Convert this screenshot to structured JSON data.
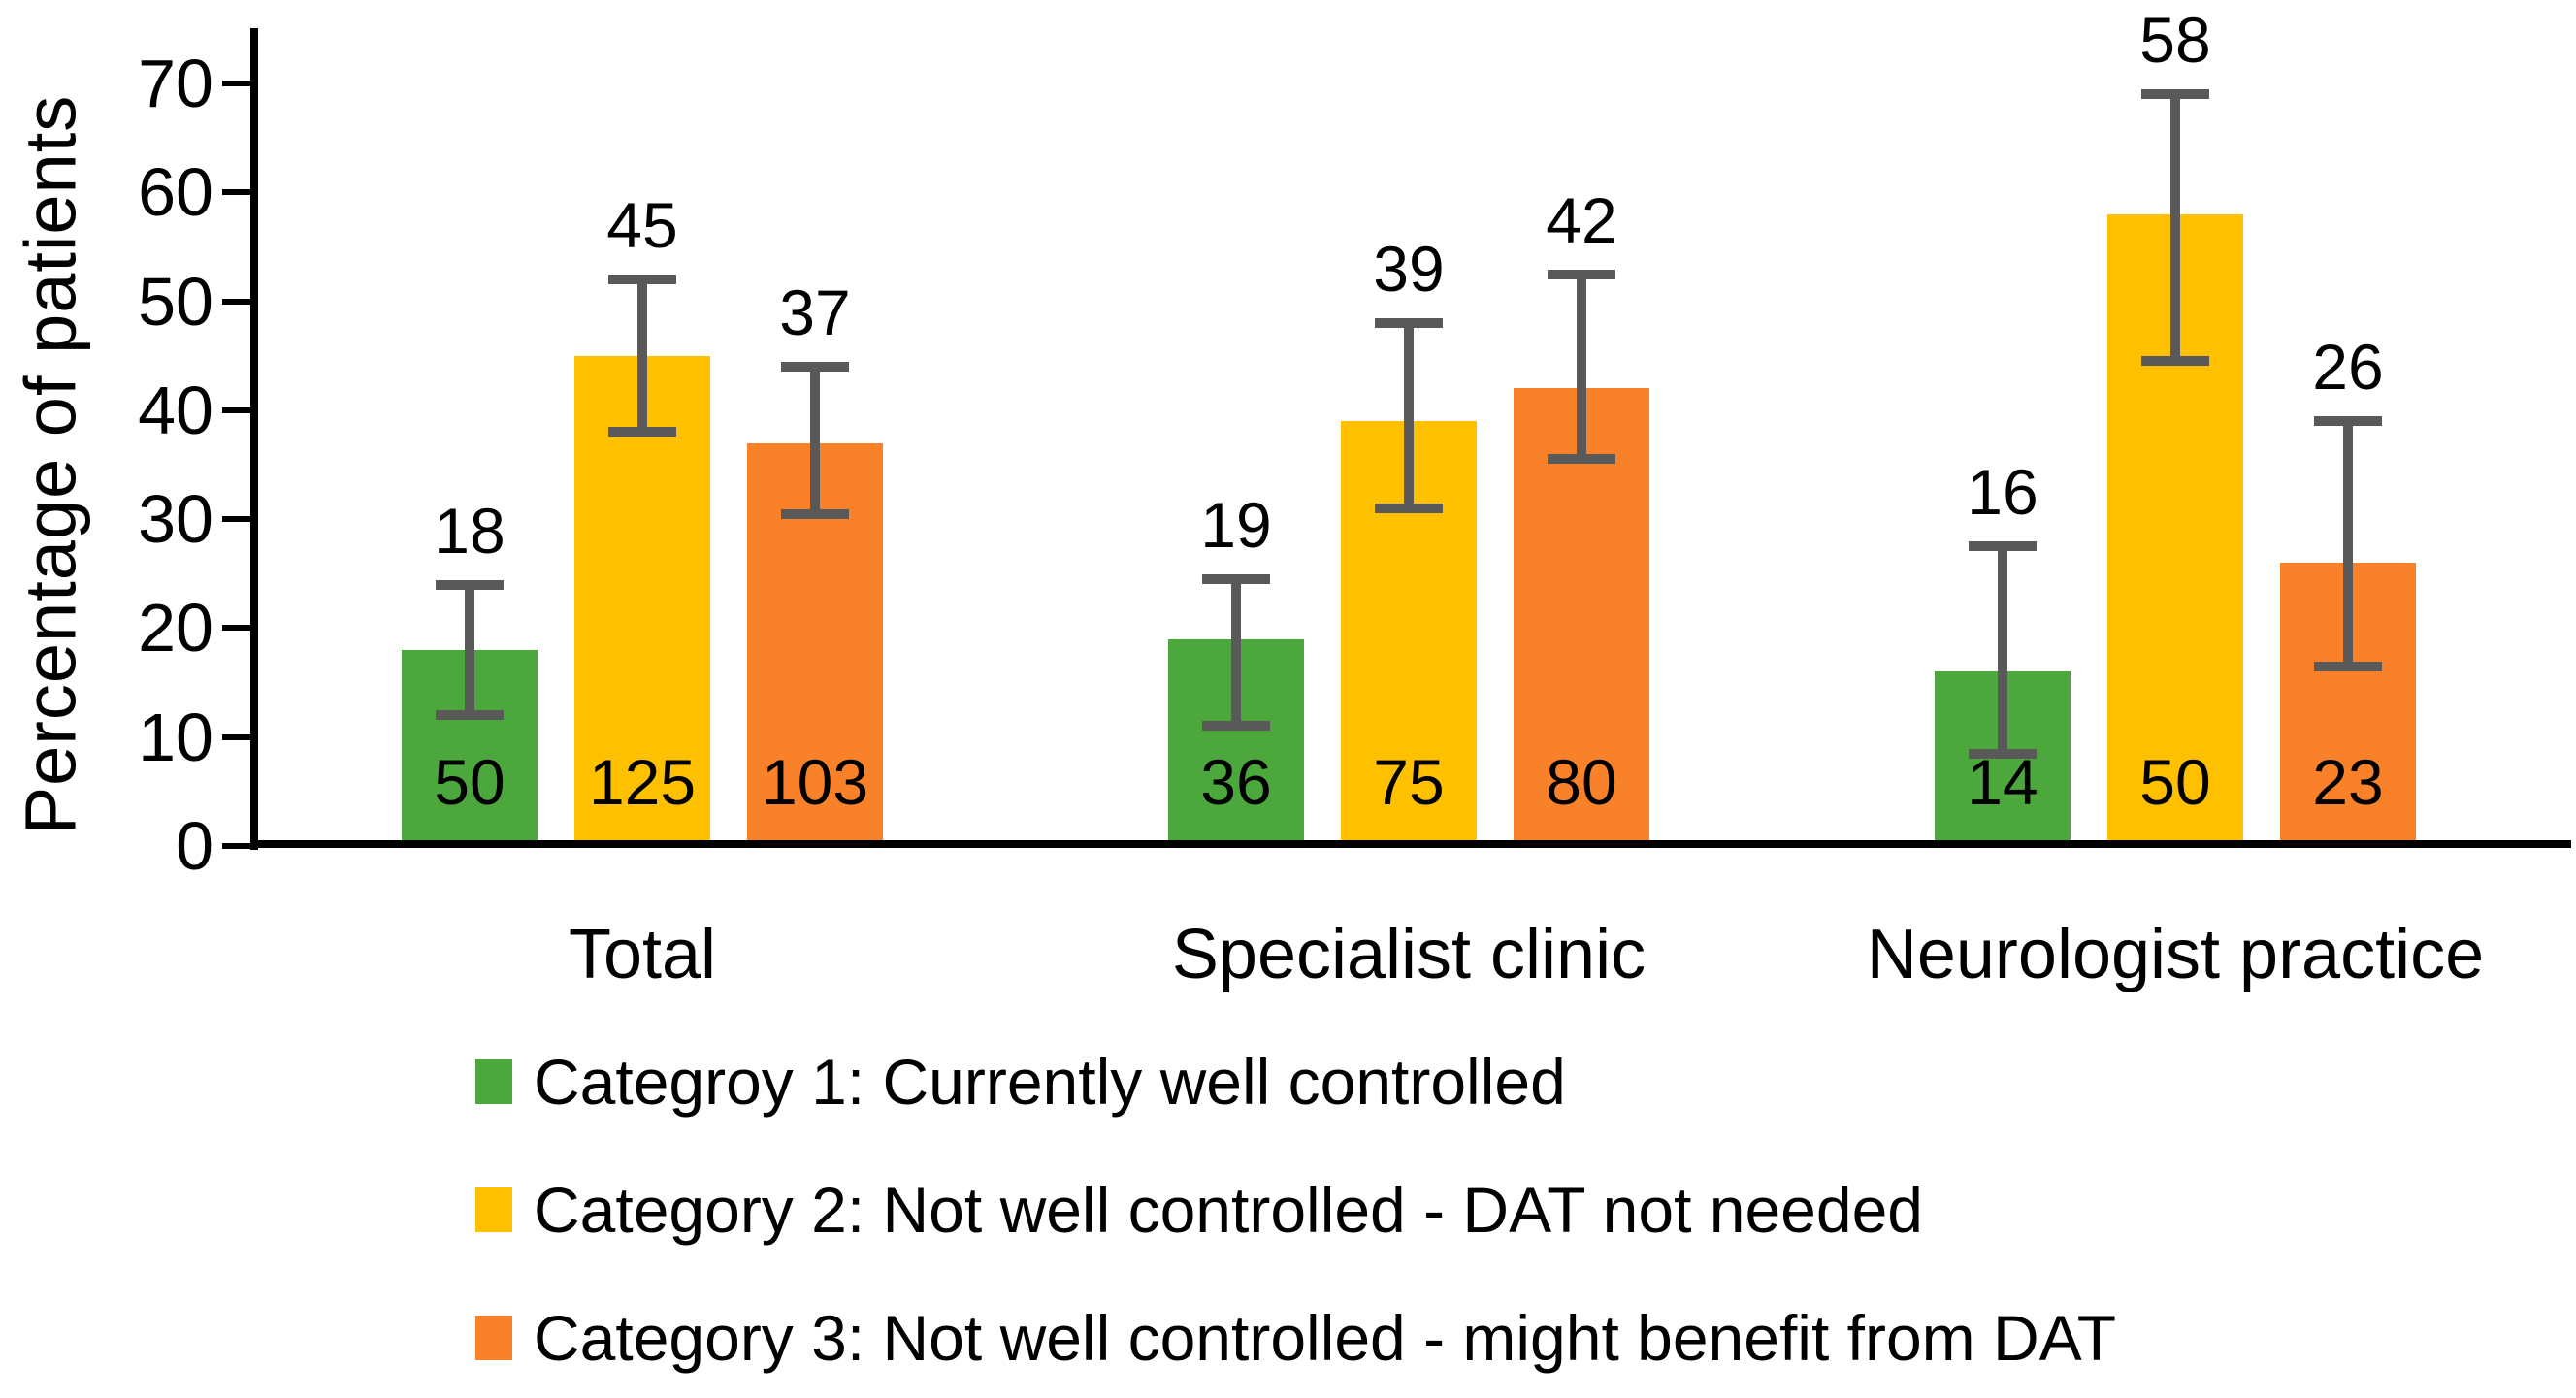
{
  "chart_data": {
    "type": "bar",
    "title": "",
    "ylabel": "Percentage of patients",
    "ylim": [
      0,
      70
    ],
    "yticks": [
      0,
      10,
      20,
      30,
      40,
      50,
      60,
      70
    ],
    "grid": false,
    "legend_position": "bottom-left",
    "categories": [
      "Total",
      "Specialist clinic",
      "Neurologist practice"
    ],
    "series": [
      {
        "name": "Categroy 1: Currently well controlled",
        "color": "#4CA83D",
        "values": [
          18,
          19,
          16
        ],
        "bar_counts": [
          50,
          36,
          14
        ],
        "error_low": [
          12,
          11,
          8.5
        ],
        "error_high": [
          24,
          24.5,
          27.5
        ]
      },
      {
        "name": "Category 2: Not well controlled - DAT not needed",
        "color": "#FFC000",
        "values": [
          45,
          39,
          58
        ],
        "bar_counts": [
          125,
          75,
          50
        ],
        "error_low": [
          38,
          31,
          44.5
        ],
        "error_high": [
          52,
          48,
          69
        ]
      },
      {
        "name": "Category 3: Not well controlled - might benefit from DAT",
        "color": "#F98129",
        "values": [
          37,
          42,
          26
        ],
        "bar_counts": [
          103,
          80,
          23
        ],
        "error_low": [
          30.5,
          35.5,
          16.5
        ],
        "error_high": [
          44,
          52.5,
          39
        ]
      }
    ],
    "error_bar_color": "#595959",
    "axis_color": "#000000",
    "background_color": "#FFFFFF"
  }
}
